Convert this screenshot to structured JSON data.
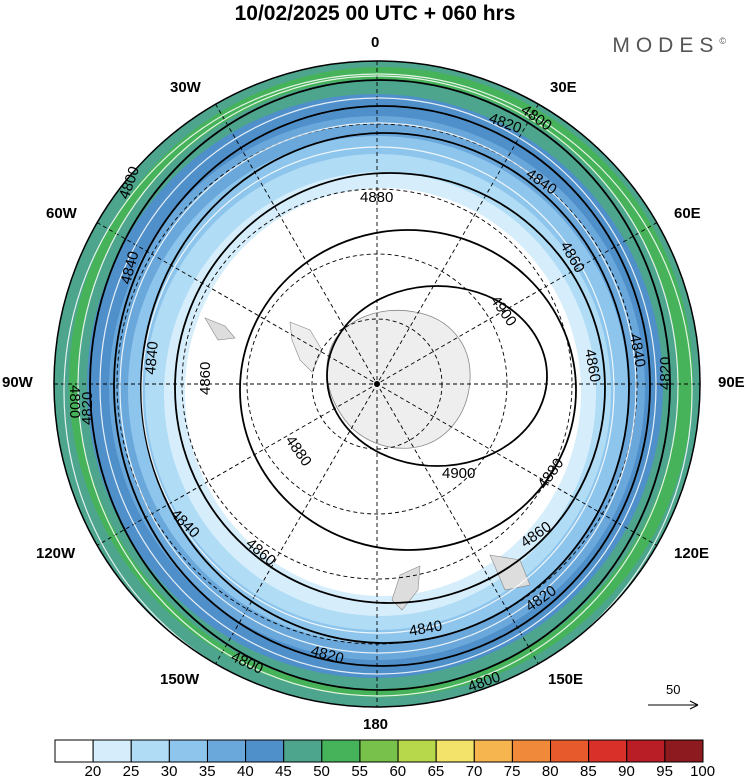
{
  "header": {
    "title": "10/02/2025  00 UTC  + 060 hrs",
    "brand": "MODES",
    "brand_mark": "©"
  },
  "longitude_labels": [
    {
      "text": "0"
    },
    {
      "text": "30E"
    },
    {
      "text": "60E"
    },
    {
      "text": "90E"
    },
    {
      "text": "120E"
    },
    {
      "text": "150E"
    },
    {
      "text": "180"
    },
    {
      "text": "150W"
    },
    {
      "text": "120W"
    },
    {
      "text": "90W"
    },
    {
      "text": "60W"
    },
    {
      "text": "30W"
    }
  ],
  "contour_labels": [
    "4800",
    "4820",
    "4840",
    "4860",
    "4880",
    "4900"
  ],
  "wind_speed_colorbar": {
    "ticks": [
      "20",
      "25",
      "30",
      "35",
      "40",
      "45",
      "50",
      "55",
      "60",
      "65",
      "70",
      "75",
      "80",
      "85",
      "90",
      "95",
      "100"
    ],
    "colors": [
      "#ffffff",
      "#d6eefb",
      "#b0dcf5",
      "#8ec5ec",
      "#6aa8dc",
      "#4f8fca",
      "#4da58e",
      "#46b35a",
      "#78c14a",
      "#b7d84a",
      "#f3e36a",
      "#f6b54f",
      "#f08a3a",
      "#e75a2c",
      "#d9302a",
      "#b91e26",
      "#8c1a1e"
    ]
  },
  "vector_reference": {
    "label": "50"
  }
}
